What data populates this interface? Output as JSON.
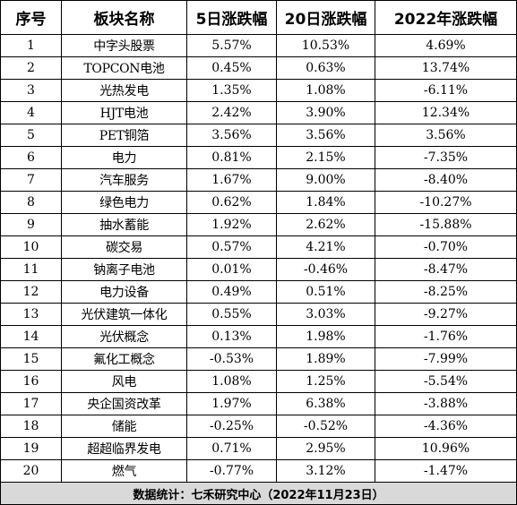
{
  "headers": [
    "序号",
    "板块名称",
    "5日涨跌幅",
    "20日涨跌幅",
    "2022年涨跌幅"
  ],
  "rows": [
    {
      "no": "1",
      "name": "中字头股票",
      "d5": "5.57%",
      "d20": "10.53%",
      "ytd": "4.69%"
    },
    {
      "no": "2",
      "name": "TOPCON电池",
      "d5": "0.45%",
      "d20": "0.63%",
      "ytd": "13.74%"
    },
    {
      "no": "3",
      "name": "光热发电",
      "d5": "1.35%",
      "d20": "1.08%",
      "ytd": "-6.11%"
    },
    {
      "no": "4",
      "name": "HJT电池",
      "d5": "2.42%",
      "d20": "3.90%",
      "ytd": "12.34%"
    },
    {
      "no": "5",
      "name": "PET铜箔",
      "d5": "3.56%",
      "d20": "3.56%",
      "ytd": "3.56%"
    },
    {
      "no": "6",
      "name": "电力",
      "d5": "0.81%",
      "d20": "2.15%",
      "ytd": "-7.35%"
    },
    {
      "no": "7",
      "name": "汽车服务",
      "d5": "1.67%",
      "d20": "9.00%",
      "ytd": "-8.40%"
    },
    {
      "no": "8",
      "name": "绿色电力",
      "d5": "0.62%",
      "d20": "1.84%",
      "ytd": "-10.27%"
    },
    {
      "no": "9",
      "name": "抽水蓄能",
      "d5": "1.92%",
      "d20": "2.62%",
      "ytd": "-15.88%"
    },
    {
      "no": "10",
      "name": "碳交易",
      "d5": "0.57%",
      "d20": "4.21%",
      "ytd": "-0.70%"
    },
    {
      "no": "11",
      "name": "钠离子电池",
      "d5": "0.01%",
      "d20": "-0.46%",
      "ytd": "-8.47%"
    },
    {
      "no": "12",
      "name": "电力设备",
      "d5": "0.49%",
      "d20": "0.51%",
      "ytd": "-8.25%"
    },
    {
      "no": "13",
      "name": "光伏建筑一体化",
      "d5": "0.55%",
      "d20": "3.03%",
      "ytd": "-9.27%"
    },
    {
      "no": "14",
      "name": "光伏概念",
      "d5": "0.13%",
      "d20": "1.98%",
      "ytd": "-1.76%"
    },
    {
      "no": "15",
      "name": "氟化工概念",
      "d5": "-0.53%",
      "d20": "1.89%",
      "ytd": "-7.99%"
    },
    {
      "no": "16",
      "name": "风电",
      "d5": "1.08%",
      "d20": "1.25%",
      "ytd": "-5.54%"
    },
    {
      "no": "17",
      "name": "央企国资改革",
      "d5": "1.97%",
      "d20": "6.38%",
      "ytd": "-3.88%"
    },
    {
      "no": "18",
      "name": "储能",
      "d5": "-0.25%",
      "d20": "-0.52%",
      "ytd": "-4.36%"
    },
    {
      "no": "19",
      "name": "超超临界发电",
      "d5": "0.71%",
      "d20": "2.95%",
      "ytd": "10.96%"
    },
    {
      "no": "20",
      "name": "燃气",
      "d5": "-0.77%",
      "d20": "3.12%",
      "ytd": "-1.47%"
    }
  ],
  "footer": "数据统计：七禾研究中心（2022年11月23日）"
}
